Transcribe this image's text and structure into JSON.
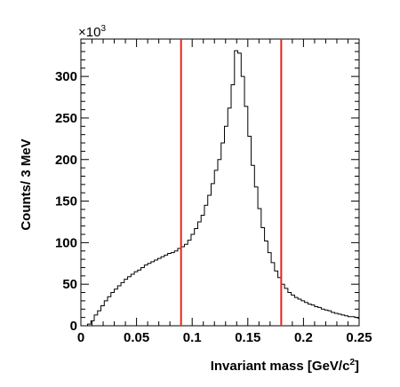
{
  "chart_data": {
    "type": "histogram",
    "xlabel_main": "Invariant mass [GeV/c",
    "xlabel_sup": "2",
    "xlabel_close": "]",
    "ylabel": "Counts/ 3 MeV",
    "y_multiplier_base": "×10",
    "y_multiplier_exp": "3",
    "xlim": [
      0,
      0.25
    ],
    "ylim": [
      0,
      345
    ],
    "x_ticks": [
      0,
      0.05,
      0.1,
      0.15,
      0.2,
      0.25
    ],
    "x_tick_labels": [
      "0",
      "0.05",
      "0.1",
      "0.15",
      "0.2",
      "0.25"
    ],
    "y_ticks": [
      0,
      50,
      100,
      150,
      200,
      250,
      300
    ],
    "y_tick_labels": [
      "0",
      "50",
      "100",
      "150",
      "200",
      "250",
      "300"
    ],
    "bin_width": 0.003,
    "bin_edges_start": 0,
    "counts": [
      0,
      0,
      2,
      6,
      13,
      18,
      24,
      30,
      35,
      40,
      44,
      48,
      52,
      56,
      59,
      62,
      65,
      67,
      70,
      73,
      75,
      77,
      79,
      81,
      83,
      85,
      87,
      88,
      90,
      93,
      95,
      98,
      103,
      110,
      117,
      125,
      133,
      145,
      157,
      171,
      187,
      200,
      220,
      240,
      262,
      290,
      331,
      328,
      300,
      264,
      228,
      193,
      167,
      141,
      118,
      102,
      88,
      76,
      66,
      58,
      50,
      45,
      40,
      37,
      34,
      32,
      30,
      28,
      26,
      25,
      23,
      22,
      20,
      19,
      18,
      16,
      15,
      14,
      13,
      12,
      11,
      11,
      10,
      9
    ],
    "cut_lines": [
      0.09,
      0.18
    ],
    "colors": {
      "histogram": "#000000",
      "cut_lines": "#e8241c"
    }
  }
}
